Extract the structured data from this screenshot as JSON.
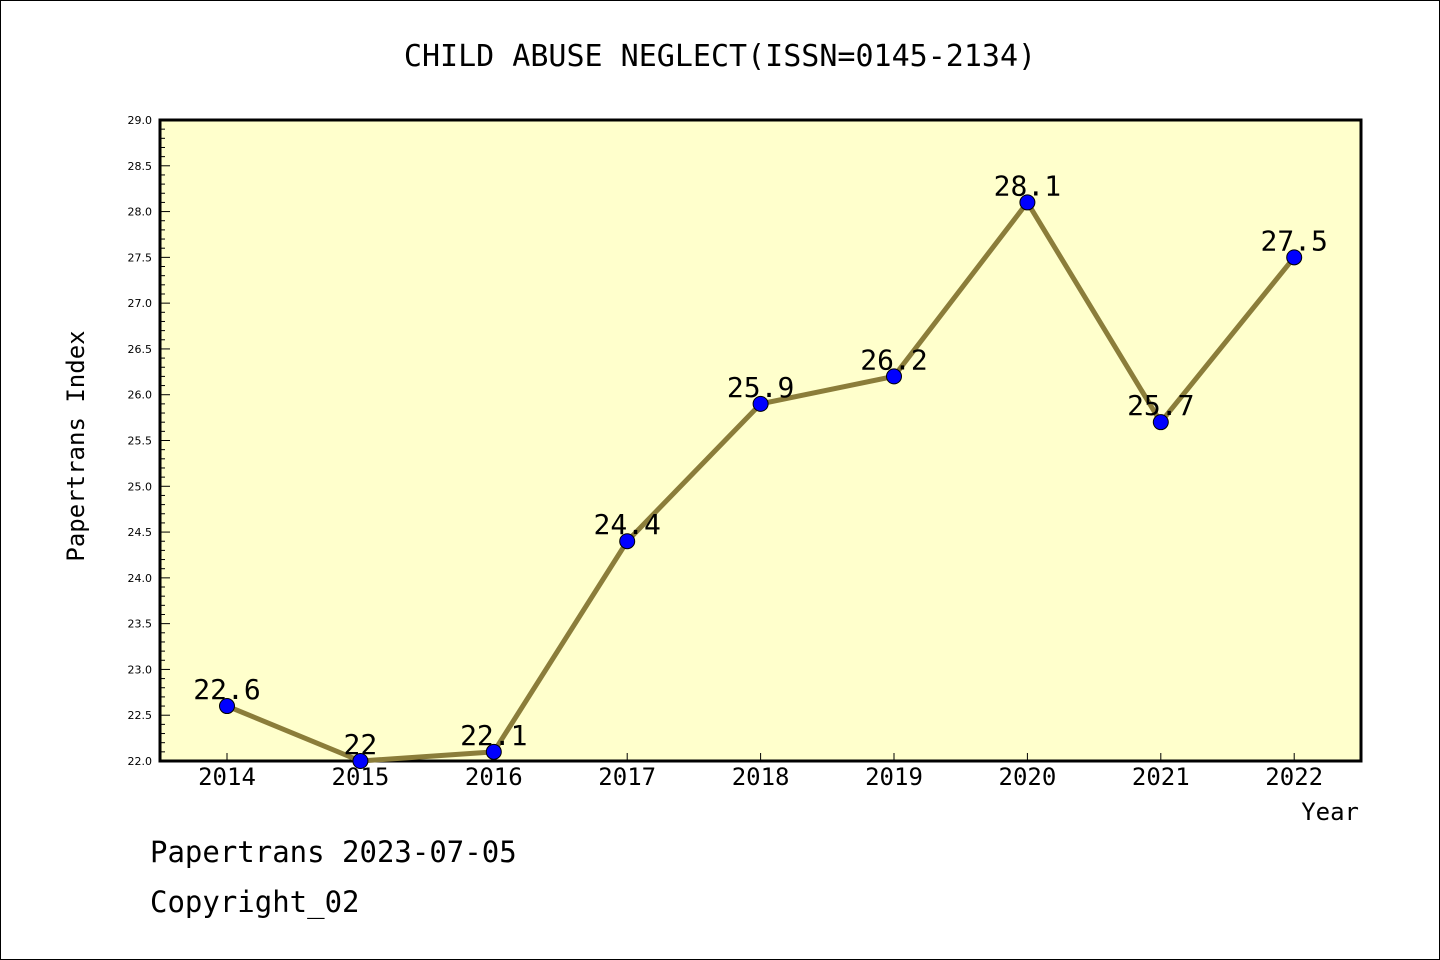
{
  "chart_data": {
    "type": "line",
    "title": "CHILD ABUSE NEGLECT(ISSN=0145-2134)",
    "xlabel": "Year",
    "ylabel": "Papertrans Index",
    "categories": [
      "2014",
      "2015",
      "2016",
      "2017",
      "2018",
      "2019",
      "2020",
      "2021",
      "2022"
    ],
    "series": [
      {
        "values": [
          22.6,
          22.0,
          22.1,
          24.4,
          25.9,
          26.2,
          28.1,
          25.7,
          27.5
        ],
        "labels": [
          "22.6",
          "22",
          "22.1",
          "24.4",
          "25.9",
          "26.2",
          "28.1",
          "25.7",
          "27.5"
        ]
      }
    ],
    "ylim": [
      22.0,
      29.0
    ],
    "yticks": [
      "22.0",
      "22.5",
      "23.0",
      "23.5",
      "24.0",
      "24.5",
      "25.0",
      "25.5",
      "26.0",
      "26.5",
      "27.0",
      "27.5",
      "28.0",
      "28.5",
      "29.0"
    ],
    "grid": false,
    "colors": {
      "plot_background": "#ffffcc",
      "line": "#8b7d3a",
      "marker": "#0000ff"
    }
  },
  "footer": {
    "date_text": "Papertrans 2023-07-05",
    "copyright_text": "Copyright_02"
  }
}
